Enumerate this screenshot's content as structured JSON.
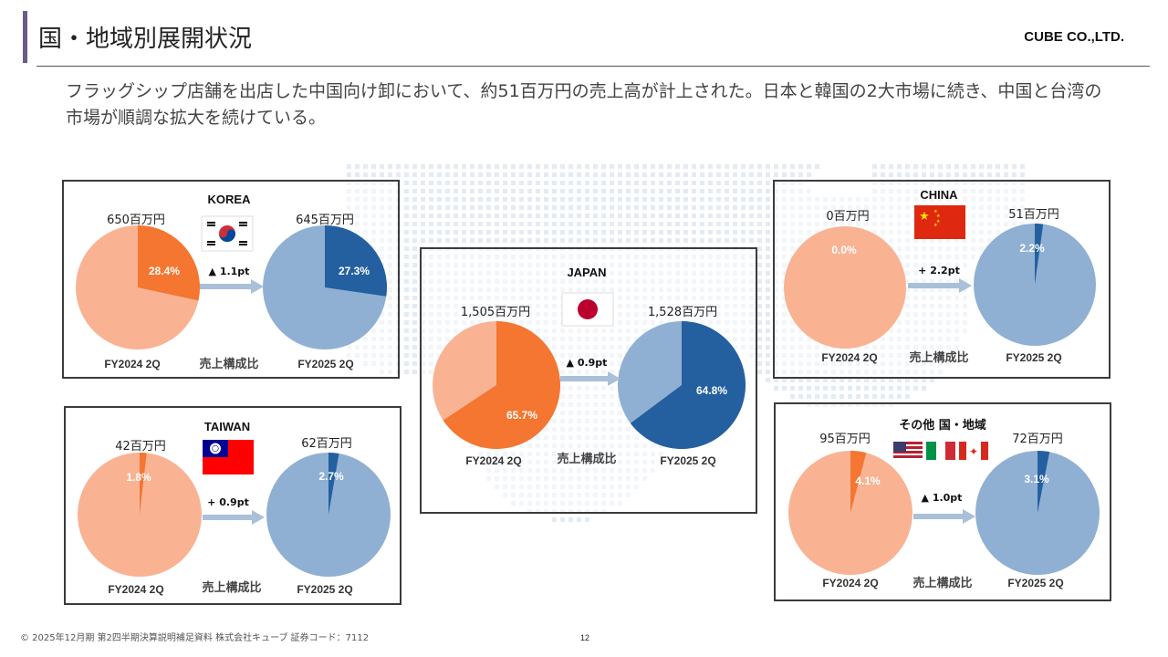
{
  "page": {
    "title": "国・地域別展開状況",
    "company": "CUBE CO.,LTD.",
    "lead": "フラッグシップ店舗を出店した中国向け卸において、約51百万円の売上高が計上された。日本と韓国の2大市場に続き、中国と台湾の市場が順調な拡大を続けている。",
    "footer": "© 2025年12月期 第2四半期決算説明補足資料 株式会社キューブ 証券コード：7112",
    "page_number": "12"
  },
  "colors": {
    "prev_light": "#f9b393",
    "prev_dark": "#f47630",
    "cur_light": "#8fb0d3",
    "cur_dark": "#2460a0",
    "arrow": "#a9c0d8",
    "panel_border": "#3b3b3b",
    "title_accent": "#6b5a8a"
  },
  "chart_data": [
    {
      "type": "pie",
      "title": "KOREA",
      "flag": "korea-flag-icon",
      "arrow_label": "▲ 1.1pt",
      "middle_label": "売上構成比",
      "prev": {
        "period": "FY2024 2Q",
        "amount": "650百万円",
        "share": 28.4,
        "share_label": "28.4%"
      },
      "cur": {
        "period": "FY2025 2Q",
        "amount": "645百万円",
        "share": 27.3,
        "share_label": "27.3%"
      }
    },
    {
      "type": "pie",
      "title": "JAPAN",
      "flag": "japan-flag-icon",
      "arrow_label": "▲ 0.9pt",
      "middle_label": "売上構成比",
      "prev": {
        "period": "FY2024 2Q",
        "amount": "1,505百万円",
        "share": 65.7,
        "share_label": "65.7%"
      },
      "cur": {
        "period": "FY2025 2Q",
        "amount": "1,528百万円",
        "share": 64.8,
        "share_label": "64.8%"
      }
    },
    {
      "type": "pie",
      "title": "CHINA",
      "flag": "china-flag-icon",
      "arrow_label": "+ 2.2pt",
      "middle_label": "売上構成比",
      "prev": {
        "period": "FY2024 2Q",
        "amount": "0百万円",
        "share": 0.0,
        "share_label": "0.0%"
      },
      "cur": {
        "period": "FY2025 2Q",
        "amount": "51百万円",
        "share": 2.2,
        "share_label": "2.2%"
      }
    },
    {
      "type": "pie",
      "title": "TAIWAN",
      "flag": "taiwan-flag-icon",
      "arrow_label": "+ 0.9pt",
      "middle_label": "売上構成比",
      "prev": {
        "period": "FY2024 2Q",
        "amount": "42百万円",
        "share": 1.8,
        "share_label": "1.8%"
      },
      "cur": {
        "period": "FY2025 2Q",
        "amount": "62百万円",
        "share": 2.7,
        "share_label": "2.7%"
      }
    },
    {
      "type": "pie",
      "title": "その他 国・地域",
      "flag": "usa-italy-canada-flags-icon",
      "arrow_label": "▲ 1.0pt",
      "middle_label": "売上構成比",
      "prev": {
        "period": "FY2024 2Q",
        "amount": "95百万円",
        "share": 4.1,
        "share_label": "4.1%"
      },
      "cur": {
        "period": "FY2025 2Q",
        "amount": "72百万円",
        "share": 3.1,
        "share_label": "3.1%"
      }
    }
  ]
}
